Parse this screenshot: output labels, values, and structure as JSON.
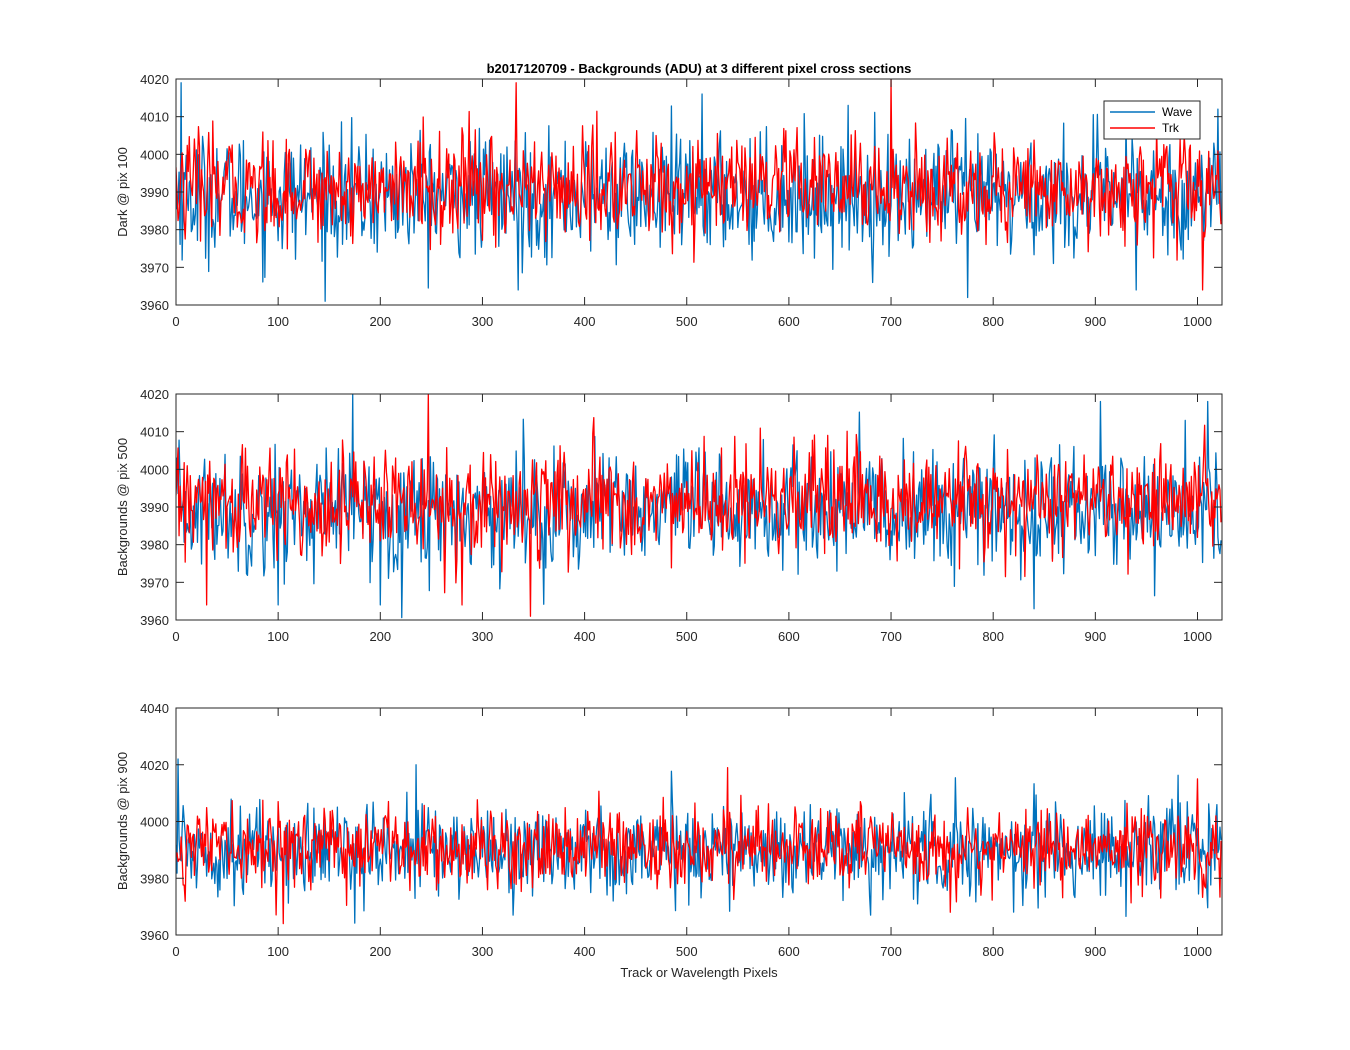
{
  "chart_data": [
    {
      "type": "line",
      "title": "b2017120709 - Backgrounds (ADU) at 3 different pixel cross sections",
      "ylabel": "Dark @ pix 100",
      "xlabel": "",
      "xlim": [
        0,
        1024
      ],
      "ylim": [
        3960,
        4020
      ],
      "xticks": [
        0,
        100,
        200,
        300,
        400,
        500,
        600,
        700,
        800,
        900,
        1000
      ],
      "yticks": [
        3960,
        3970,
        3980,
        3990,
        4000,
        4010,
        4020
      ],
      "legend": {
        "placement": "top-right",
        "entries": [
          "Wave",
          "Trk"
        ]
      },
      "grid": false,
      "series": [
        {
          "name": "Wave",
          "color": "#0072BD",
          "n": 1024,
          "approx_mean": 3989,
          "approx_spread": 8,
          "notable_points": [
            [
              5,
              4019
            ],
            [
              335,
              3964
            ],
            [
              515,
              4016
            ],
            [
              775,
              3962
            ],
            [
              940,
              3964
            ],
            [
              1020,
              4012
            ]
          ]
        },
        {
          "name": "Trk",
          "color": "#FF0000",
          "n": 1024,
          "approx_mean": 3991,
          "approx_spread": 7,
          "notable_points": [
            [
              333,
              4019
            ],
            [
              700,
              4020
            ],
            [
              1005,
              3964
            ]
          ]
        }
      ]
    },
    {
      "type": "line",
      "title": "",
      "ylabel": "Backgrounds @ pix 500",
      "xlabel": "",
      "xlim": [
        0,
        1024
      ],
      "ylim": [
        3960,
        4020
      ],
      "xticks": [
        0,
        100,
        200,
        300,
        400,
        500,
        600,
        700,
        800,
        900,
        1000
      ],
      "yticks": [
        3960,
        3970,
        3980,
        3990,
        4000,
        4010,
        4020
      ],
      "grid": false,
      "series": [
        {
          "name": "Wave",
          "color": "#0072BD",
          "n": 1024,
          "approx_mean": 3989,
          "approx_spread": 8,
          "notable_points": [
            [
              173,
              4020
            ],
            [
              100,
              3964
            ],
            [
              200,
              3964
            ],
            [
              840,
              3963
            ],
            [
              905,
              4018
            ],
            [
              1010,
              4018
            ]
          ]
        },
        {
          "name": "Trk",
          "color": "#FF0000",
          "n": 1024,
          "approx_mean": 3991,
          "approx_spread": 7,
          "notable_points": [
            [
              247,
              4020
            ],
            [
              347,
              3961
            ],
            [
              30,
              3964
            ],
            [
              280,
              3964
            ]
          ]
        }
      ]
    },
    {
      "type": "line",
      "title": "",
      "ylabel": "Backgrounds @ pix 900",
      "xlabel": "Track or Wavelength Pixels",
      "xlim": [
        0,
        1024
      ],
      "ylim": [
        3960,
        4040
      ],
      "xticks": [
        0,
        100,
        200,
        300,
        400,
        500,
        600,
        700,
        800,
        900,
        1000
      ],
      "yticks": [
        3960,
        3980,
        4000,
        4020,
        4040
      ],
      "grid": false,
      "series": [
        {
          "name": "Wave",
          "color": "#0072BD",
          "n": 1024,
          "approx_mean": 3990,
          "approx_spread": 8,
          "notable_points": [
            [
              2,
              4022
            ],
            [
              235,
              4020
            ],
            [
              330,
              3967
            ],
            [
              680,
              3967
            ]
          ]
        },
        {
          "name": "Trk",
          "color": "#FF0000",
          "n": 1024,
          "approx_mean": 3991,
          "approx_spread": 7,
          "notable_points": [
            [
              105,
              3964
            ],
            [
              540,
              4019
            ],
            [
              1000,
              4015
            ]
          ]
        }
      ]
    }
  ]
}
